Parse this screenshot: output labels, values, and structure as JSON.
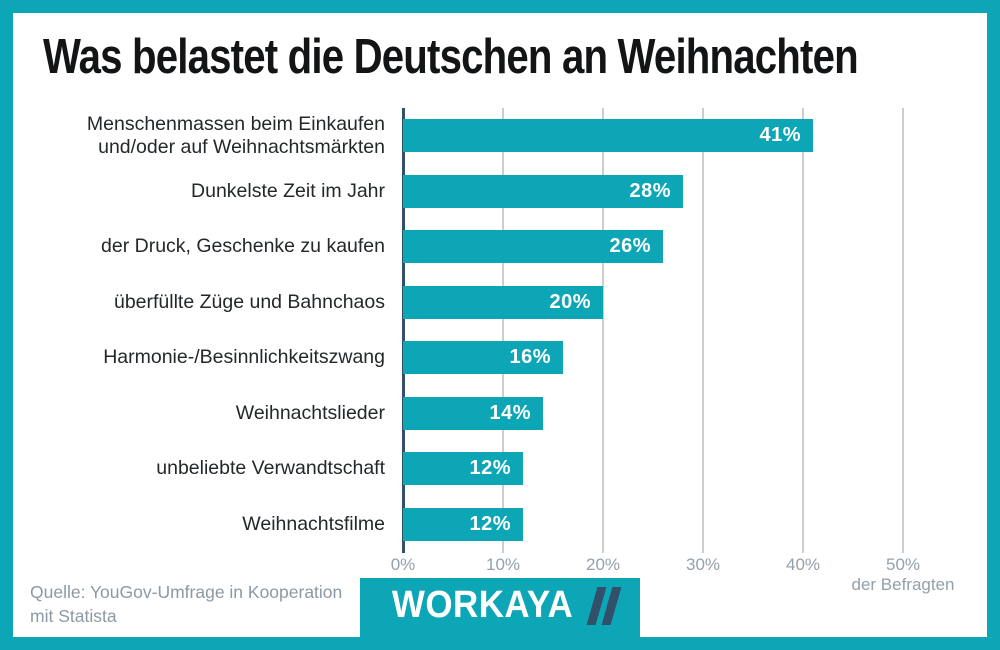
{
  "title": "Was belastet die Deutschen an Weihnachten",
  "chart_data": {
    "type": "bar",
    "orientation": "horizontal",
    "title": "Was belastet die Deutschen an Weihnachten",
    "categories": [
      "Menschenmassen beim Einkaufen\nund/oder auf Weihnachtsmärkten",
      "Dunkelste Zeit im Jahr",
      "der Druck, Geschenke zu kaufen",
      "überfüllte Züge und Bahnchaos",
      "Harmonie-/Besinnlichkeitszwang",
      "Weihnachtslieder",
      "unbeliebte Verwandtschaft",
      "Weihnachtsfilme"
    ],
    "values": [
      41,
      28,
      26,
      20,
      16,
      14,
      12,
      12
    ],
    "value_labels": [
      "41%",
      "28%",
      "26%",
      "20%",
      "16%",
      "14%",
      "12%",
      "12%"
    ],
    "x_ticks": [
      "0%",
      "10%",
      "20%",
      "30%",
      "40%",
      "50%"
    ],
    "x_tick_values": [
      0,
      10,
      20,
      30,
      40,
      50
    ],
    "xlim": [
      0,
      50
    ],
    "x_axis_note": "der Befragten",
    "xlabel": "der Befragten",
    "ylabel": "",
    "grid": "vertical",
    "legend": "none",
    "value_labels_position": "inside-end"
  },
  "source": {
    "line1": "Quelle: YouGov-Umfrage in Kooperation",
    "line2": "mit Statista"
  },
  "logo": {
    "text": "WORKAYA",
    "mark": "double-slash"
  },
  "colors": {
    "teal": "#0ca6b6",
    "navy": "#33506b",
    "gridline": "#c9ced3",
    "tick_text": "#93a0ab",
    "source_text": "#8b99a6",
    "title_text": "#121416",
    "label_text": "#24282b",
    "bar_value_text": "#ffffff",
    "background": "#ffffff"
  }
}
